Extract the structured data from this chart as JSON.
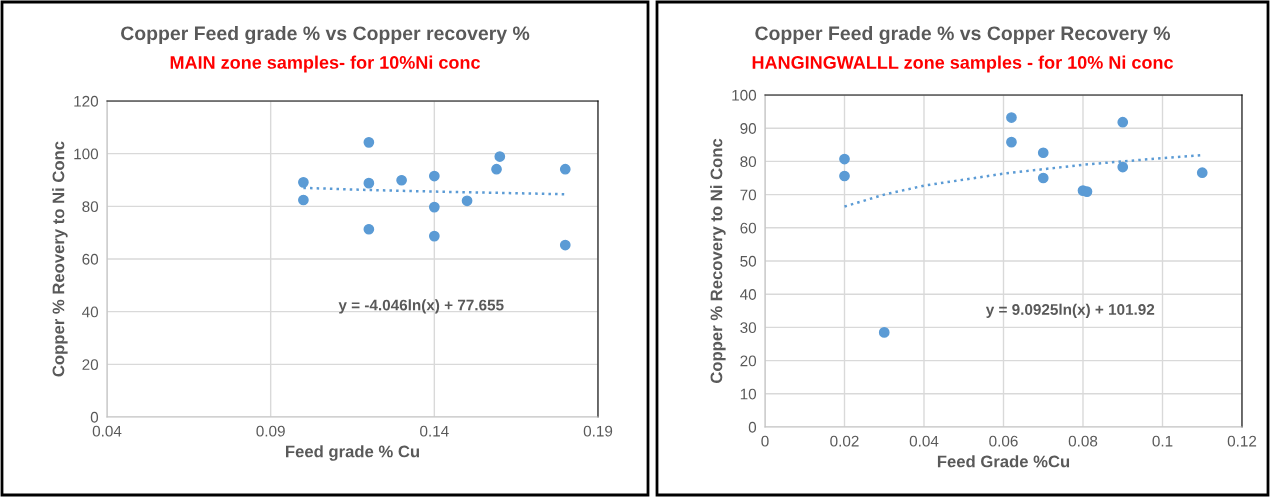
{
  "chart_data": [
    {
      "type": "scatter",
      "title": "Copper Feed grade % vs Copper recovery %",
      "subtitle": "MAIN zone samples- for 10%Ni conc",
      "xlabel": "Feed grade % Cu",
      "ylabel": "Copper % Reovery to Ni Conc",
      "xlim": [
        0.04,
        0.19
      ],
      "xticks": [
        0.04,
        0.09,
        0.14,
        0.19
      ],
      "ylim": [
        0,
        120
      ],
      "yticks": [
        0,
        20,
        40,
        60,
        80,
        100,
        120
      ],
      "grid": true,
      "legend": false,
      "annotations": [
        "y = -4.046ln(x) + 77.655"
      ],
      "series": [
        {
          "marker": "circle",
          "color": "#5b9bd5",
          "x": [
            0.1,
            0.1,
            0.12,
            0.12,
            0.12,
            0.13,
            0.14,
            0.14,
            0.14,
            0.15,
            0.159,
            0.16,
            0.18,
            0.18
          ],
          "values": [
            89.1,
            82.4,
            104.3,
            88.8,
            71.3,
            89.9,
            91.5,
            79.7,
            68.7,
            82.1,
            94.1,
            98.9,
            94.1,
            65.3
          ]
        },
        {
          "type": "line",
          "line_style": "dotted",
          "color": "#5b9bd5",
          "x": [
            0.1,
            0.12,
            0.14,
            0.16,
            0.18
          ],
          "values": [
            87.0,
            86.2,
            85.6,
            85.1,
            84.6
          ]
        }
      ]
    },
    {
      "type": "scatter",
      "title": "Copper Feed grade % vs Copper Recovery %",
      "subtitle": "HANGINGWALLL zone samples - for 10% Ni conc",
      "xlabel": "Feed Grade %Cu",
      "ylabel": "Copper % Recovery to Ni Conc",
      "xlim": [
        0,
        0.12
      ],
      "xticks": [
        0,
        0.02,
        0.04,
        0.06,
        0.08,
        0.1,
        0.12
      ],
      "ylim": [
        0,
        100
      ],
      "yticks": [
        0,
        10,
        20,
        30,
        40,
        50,
        60,
        70,
        80,
        90,
        100
      ],
      "grid": true,
      "legend": false,
      "annotations": [
        "y = 9.0925ln(x) + 101.92"
      ],
      "series": [
        {
          "marker": "circle",
          "color": "#5b9bd5",
          "x": [
            0.02,
            0.02,
            0.03,
            0.062,
            0.062,
            0.07,
            0.07,
            0.08,
            0.081,
            0.09,
            0.09,
            0.11
          ],
          "values": [
            80.7,
            75.6,
            28.5,
            93.2,
            85.8,
            82.6,
            75.0,
            71.2,
            70.9,
            91.8,
            78.3,
            76.6
          ]
        },
        {
          "type": "line",
          "line_style": "dotted",
          "color": "#5b9bd5",
          "x": [
            0.02,
            0.03,
            0.04,
            0.06,
            0.08,
            0.1,
            0.11
          ],
          "values": [
            66.4,
            70.0,
            72.7,
            76.3,
            79.0,
            81.0,
            81.9
          ]
        }
      ]
    }
  ]
}
